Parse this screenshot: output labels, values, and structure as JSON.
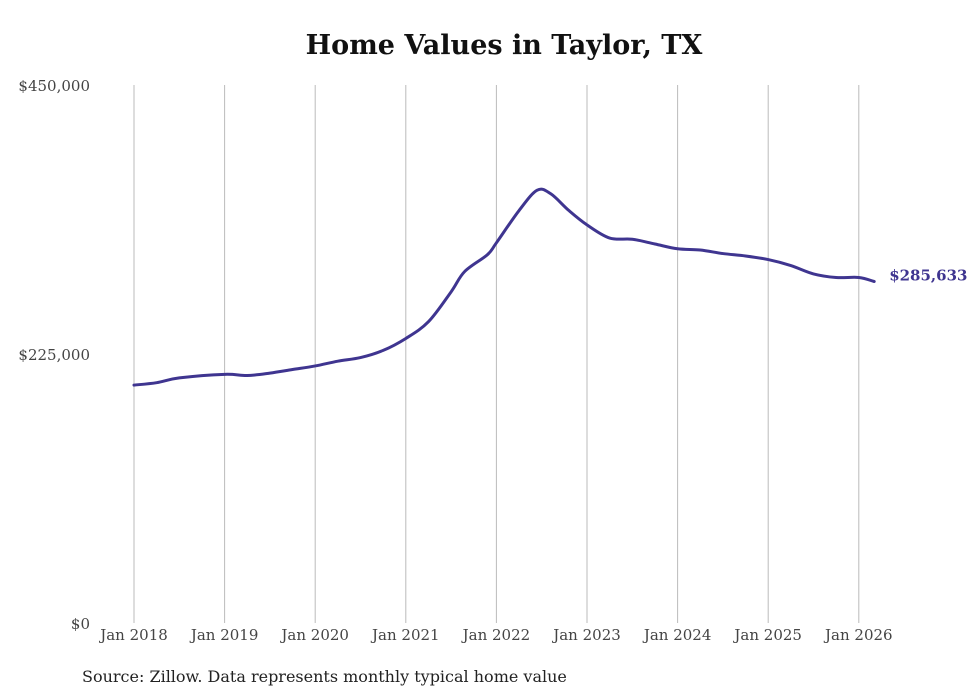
{
  "chart_data": {
    "type": "line",
    "title": "Home Values in Taylor, TX",
    "xlabel": "",
    "ylabel": "",
    "ylim": [
      0,
      450000
    ],
    "xlim": [
      2018,
      2026.17
    ],
    "y_ticks": [
      {
        "value": 0,
        "label": "$0"
      },
      {
        "value": 225000,
        "label": "$225,000"
      },
      {
        "value": 450000,
        "label": "$450,000"
      }
    ],
    "x_ticks": [
      {
        "value": 2018,
        "label": "Jan 2018"
      },
      {
        "value": 2019,
        "label": "Jan 2019"
      },
      {
        "value": 2020,
        "label": "Jan 2020"
      },
      {
        "value": 2021,
        "label": "Jan 2021"
      },
      {
        "value": 2022,
        "label": "Jan 2022"
      },
      {
        "value": 2023,
        "label": "Jan 2023"
      },
      {
        "value": 2024,
        "label": "Jan 2024"
      },
      {
        "value": 2025,
        "label": "Jan 2025"
      },
      {
        "value": 2026,
        "label": "Jan 2026"
      }
    ],
    "grid": "vertical",
    "series": [
      {
        "name": "Typical home value",
        "color": "#3f3590",
        "x": [
          2018.0,
          2018.25,
          2018.5,
          2019.0,
          2019.25,
          2019.5,
          2019.75,
          2020.0,
          2020.25,
          2020.5,
          2020.75,
          2021.0,
          2021.25,
          2021.5,
          2021.65,
          2021.9,
          2022.0,
          2022.25,
          2022.45,
          2022.6,
          2022.8,
          2023.0,
          2023.25,
          2023.5,
          2023.75,
          2024.0,
          2024.25,
          2024.5,
          2024.75,
          2025.0,
          2025.25,
          2025.5,
          2025.75,
          2026.0,
          2026.17
        ],
        "y": [
          199000,
          201000,
          205000,
          208000,
          207000,
          209000,
          212000,
          215000,
          219000,
          222000,
          228000,
          238000,
          252000,
          277000,
          294000,
          308000,
          318000,
          345000,
          362000,
          359000,
          345000,
          333000,
          322000,
          321000,
          317000,
          313000,
          312000,
          309000,
          307000,
          304000,
          299000,
          292000,
          289000,
          289000,
          285633
        ]
      }
    ],
    "end_label": "$285,633"
  },
  "source": "Source: Zillow. Data represents monthly typical home value"
}
